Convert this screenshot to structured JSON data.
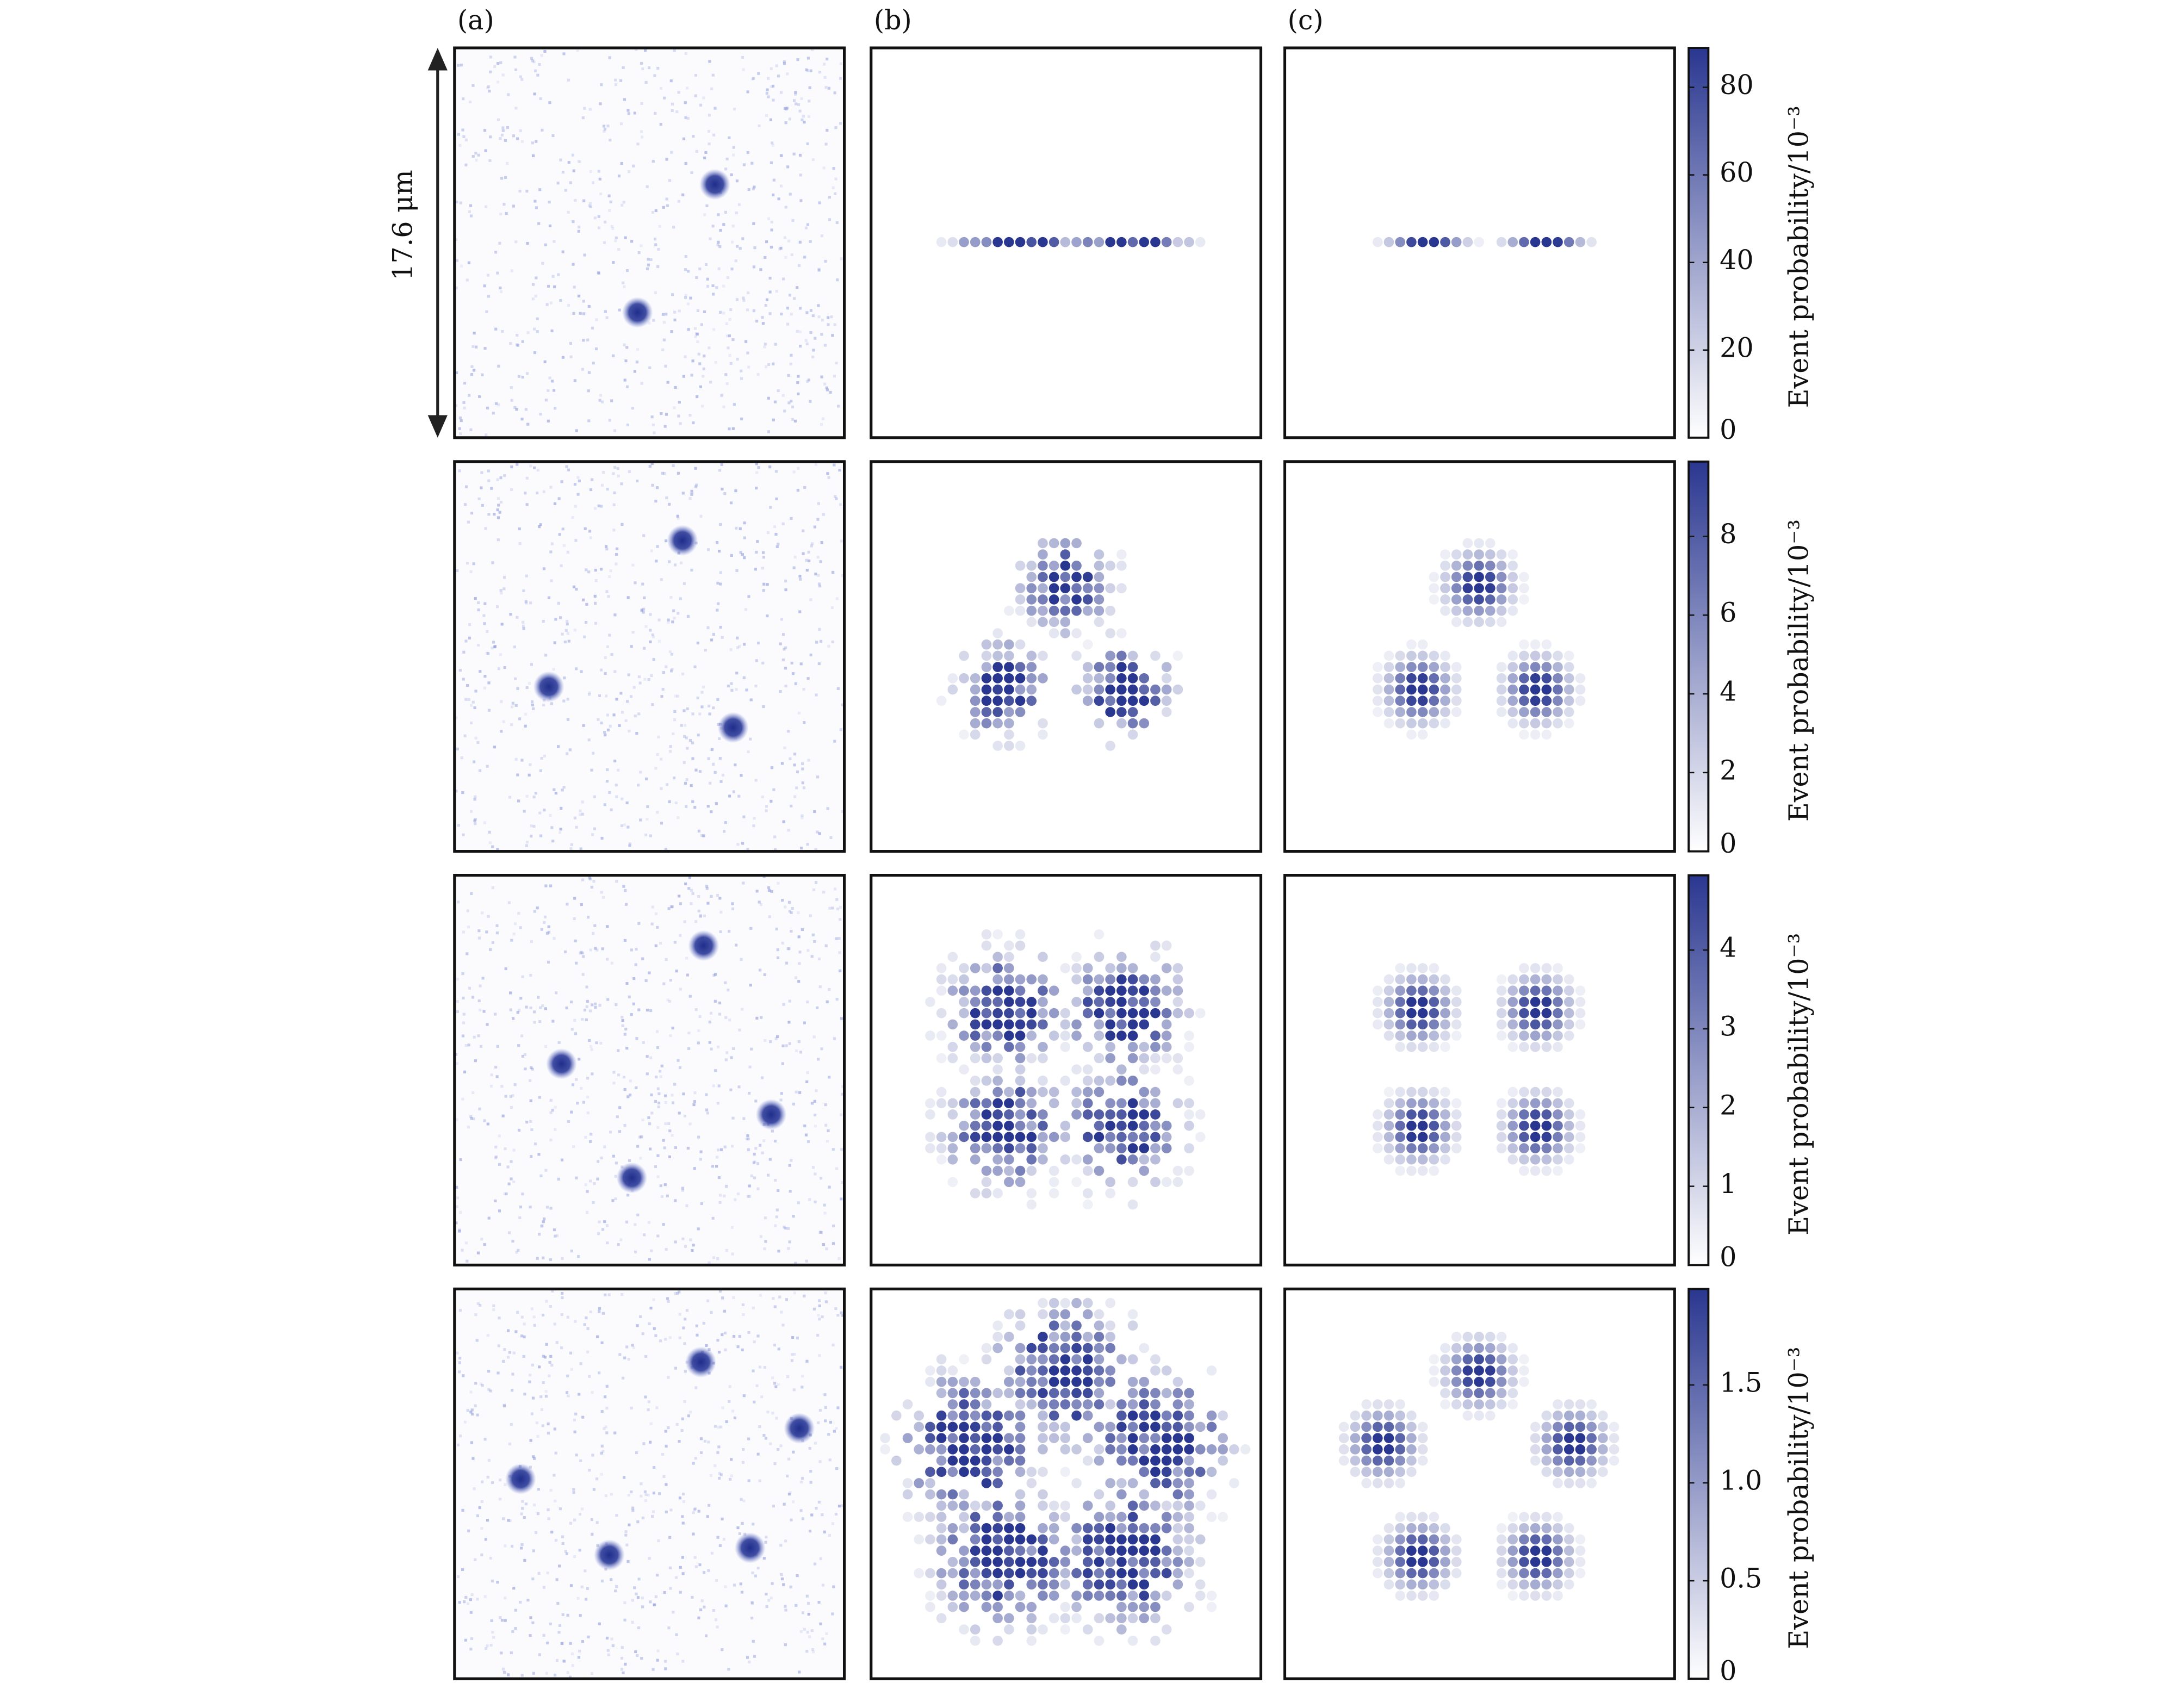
{
  "panel_labels": [
    "(a)",
    "(b)",
    "(c)"
  ],
  "scale_label": "17.6 μm",
  "colorbars": [
    {
      "label": "Event probability/10⁻³",
      "ylim": [
        0,
        89
      ],
      "yticks": [
        0,
        20,
        40,
        60,
        80
      ]
    },
    {
      "label": "Event probability/10⁻³",
      "ylim": [
        0,
        9.9
      ],
      "yticks": [
        0,
        2,
        4,
        6,
        8
      ]
    },
    {
      "label": "Event probability/10⁻³",
      "ylim": [
        0,
        4.95
      ],
      "yticks": [
        0,
        1,
        2,
        3,
        4
      ]
    },
    {
      "label": "Event probability/10⁻³",
      "ylim": [
        0,
        1.99
      ],
      "yticks": [
        0,
        0.5,
        {
          "value": 1,
          "label": "1.0"
        },
        1.5
      ]
    }
  ]
}
